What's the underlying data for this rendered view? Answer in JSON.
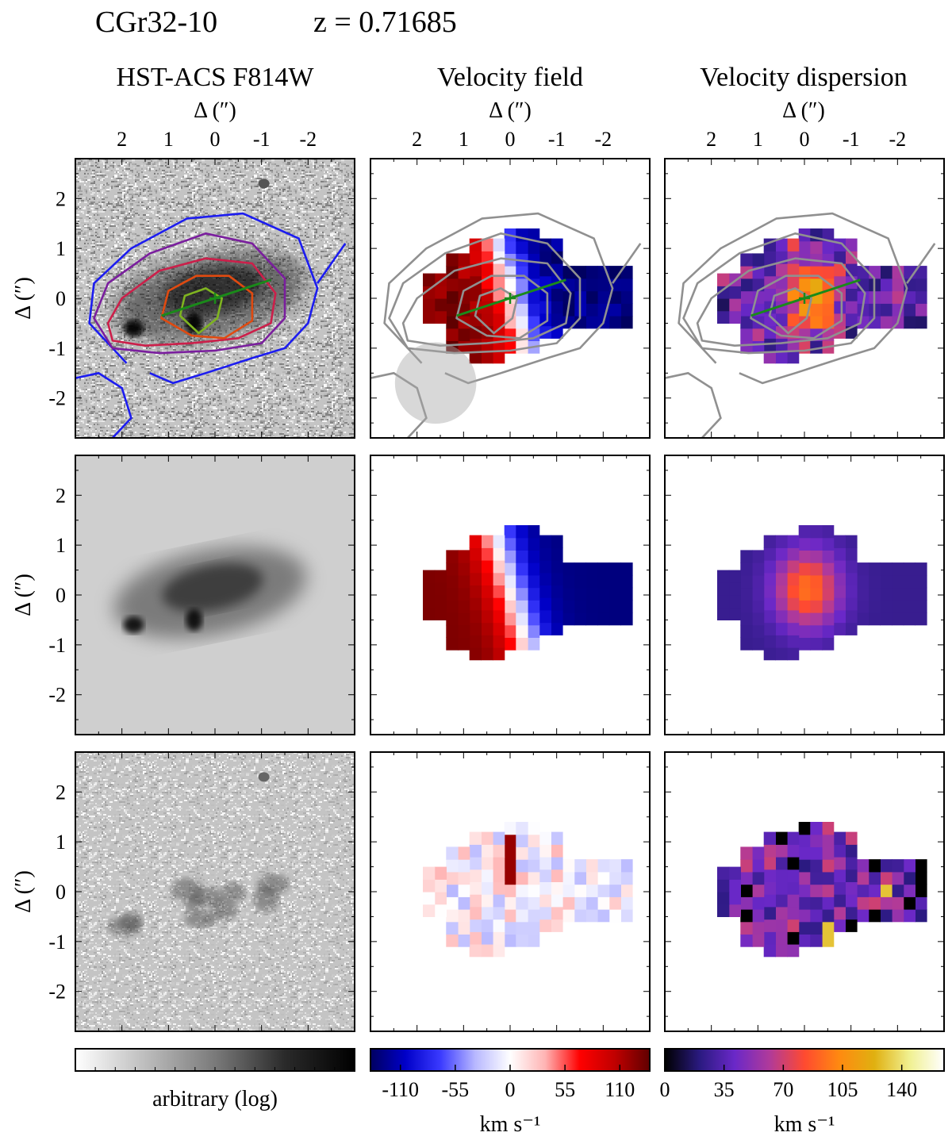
{
  "header": {
    "object": "CGr32-10",
    "redshift": "z = 0.71685"
  },
  "columns": [
    {
      "title": "HST-ACS F814W"
    },
    {
      "title": "Velocity field"
    },
    {
      "title": "Velocity dispersion"
    }
  ],
  "axes": {
    "top_label": "Δ   (″)",
    "side_label": "Δ   (″)",
    "x_ticks": [
      "2",
      "1",
      "0",
      "-1",
      "-2"
    ],
    "y_ticks": [
      "2",
      "1",
      "0",
      "-1",
      "-2"
    ]
  },
  "colorbars": [
    {
      "name": "grey",
      "ticks": [],
      "label": "arbitrary (log)",
      "stops": [
        "#ffffff",
        "#bdbdbd",
        "#7a7a7a",
        "#2a2a2a",
        "#000000"
      ]
    },
    {
      "name": "velocity",
      "ticks": [
        "-110",
        "-55",
        "0",
        "55",
        "110"
      ],
      "tick_values": [
        -110,
        -55,
        0,
        55,
        110
      ],
      "range": [
        -140,
        140
      ],
      "label": "km s⁻¹",
      "stops": [
        "#000060",
        "#0000c8",
        "#3a3aff",
        "#b8b8ff",
        "#ffffff",
        "#ffb4b4",
        "#ff0000",
        "#c00000",
        "#600000"
      ]
    },
    {
      "name": "dispersion",
      "ticks": [
        "0",
        "35",
        "70",
        "105",
        "140"
      ],
      "tick_values": [
        0,
        35,
        70,
        105,
        140
      ],
      "range": [
        0,
        165
      ],
      "label": "km s⁻¹",
      "stops": [
        "#000000",
        "#2a1a80",
        "#6a28c8",
        "#b03a9a",
        "#ff4a30",
        "#ff8a10",
        "#e0b010",
        "#f0f090",
        "#ffffff"
      ]
    }
  ],
  "chart_data": [
    {
      "type": "heatmap",
      "panel": "observed image",
      "xlim": [
        3,
        -3
      ],
      "ylim": [
        -2.8,
        2.8
      ]
    },
    {
      "type": "heatmap",
      "panel": "observed velocity field",
      "xlim": [
        3,
        -3
      ],
      "ylim": [
        -2.8,
        2.8
      ]
    },
    {
      "type": "heatmap",
      "panel": "observed velocity dispersion",
      "xlim": [
        3,
        -3
      ],
      "ylim": [
        -2.8,
        2.8
      ]
    },
    {
      "type": "heatmap",
      "panel": "model image",
      "xlim": [
        3,
        -3
      ],
      "ylim": [
        -2.8,
        2.8
      ]
    },
    {
      "type": "heatmap",
      "panel": "model velocity field",
      "xlim": [
        3,
        -3
      ],
      "ylim": [
        -2.8,
        2.8
      ]
    },
    {
      "type": "heatmap",
      "panel": "model velocity dispersion",
      "xlim": [
        3,
        -3
      ],
      "ylim": [
        -2.8,
        2.8
      ]
    },
    {
      "type": "heatmap",
      "panel": "residual image",
      "xlim": [
        3,
        -3
      ],
      "ylim": [
        -2.8,
        2.8
      ]
    },
    {
      "type": "heatmap",
      "panel": "residual velocity field",
      "xlim": [
        3,
        -3
      ],
      "ylim": [
        -2.8,
        2.8
      ]
    },
    {
      "type": "heatmap",
      "panel": "residual velocity dispersion",
      "xlim": [
        3,
        -3
      ],
      "ylim": [
        -2.8,
        2.8
      ]
    }
  ],
  "kinematic_center": [
    0,
    0
  ],
  "major_axis_endpoints": [
    [
      1.15,
      -0.35
    ],
    [
      -1.2,
      0.37
    ]
  ],
  "psf_fwhm_arcsec": 1.65,
  "psf_center": [
    1.6,
    -1.7
  ]
}
